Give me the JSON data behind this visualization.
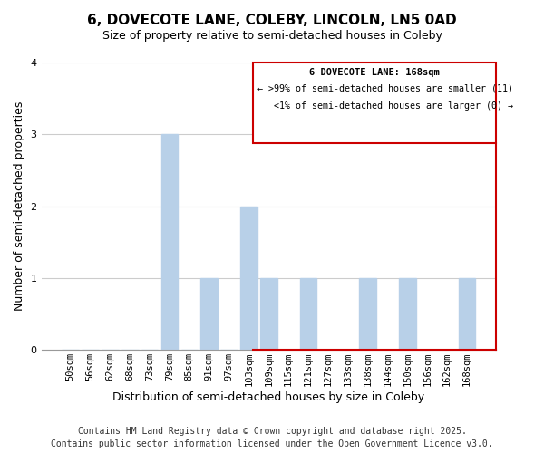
{
  "title": "6, DOVECOTE LANE, COLEBY, LINCOLN, LN5 0AD",
  "subtitle": "Size of property relative to semi-detached houses in Coleby",
  "xlabel": "Distribution of semi-detached houses by size in Coleby",
  "ylabel": "Number of semi-detached properties",
  "categories": [
    "50sqm",
    "56sqm",
    "62sqm",
    "68sqm",
    "73sqm",
    "79sqm",
    "85sqm",
    "91sqm",
    "97sqm",
    "103sqm",
    "109sqm",
    "115sqm",
    "121sqm",
    "127sqm",
    "133sqm",
    "138sqm",
    "144sqm",
    "150sqm",
    "156sqm",
    "162sqm",
    "168sqm"
  ],
  "values": [
    0,
    0,
    0,
    0,
    0,
    3,
    0,
    1,
    0,
    2,
    1,
    0,
    1,
    0,
    0,
    1,
    0,
    1,
    0,
    0,
    1
  ],
  "bar_color": "#b8d0e8",
  "ylim": [
    0,
    4
  ],
  "yticks": [
    0,
    1,
    2,
    3,
    4
  ],
  "background_color": "#ffffff",
  "grid_color": "#cccccc",
  "box_text_line1": "6 DOVECOTE LANE: 168sqm",
  "box_text_line2": "← >99% of semi-detached houses are smaller (11)",
  "box_text_line3": "   <1% of semi-detached houses are larger (0) →",
  "box_edge_color": "#cc0000",
  "footer_line1": "Contains HM Land Registry data © Crown copyright and database right 2025.",
  "footer_line2": "Contains public sector information licensed under the Open Government Licence v3.0.",
  "title_fontsize": 11,
  "subtitle_fontsize": 9,
  "axis_label_fontsize": 9,
  "tick_fontsize": 7.5,
  "footer_fontsize": 7
}
